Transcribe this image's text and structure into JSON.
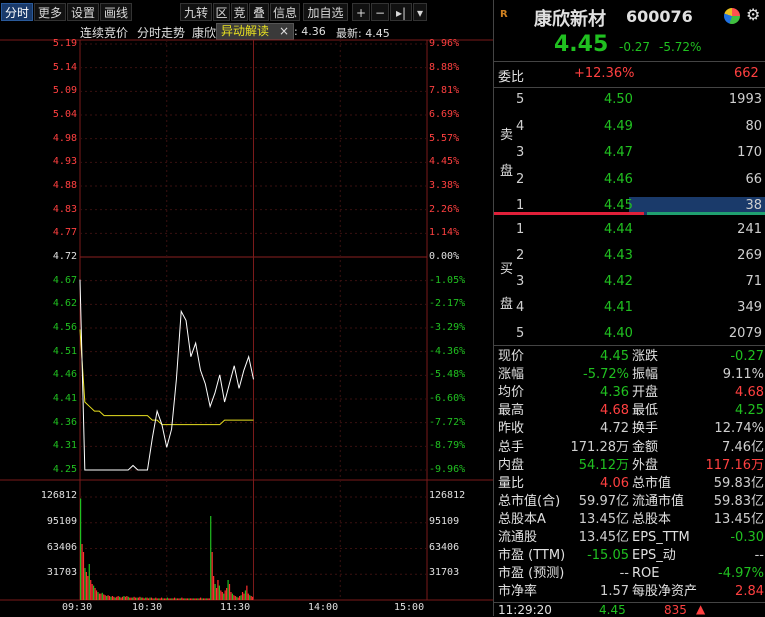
{
  "toolbar": {
    "tabs": [
      "分时",
      "更多",
      "设置",
      "画线"
    ],
    "tools": [
      "九转",
      "区",
      "竞",
      "叠",
      "信息",
      "加自选"
    ],
    "controls": [
      "+",
      "−",
      "▸|",
      "▾"
    ]
  },
  "chart_header": {
    "auction": "连续竞价",
    "trend": "分时走势",
    "name_partial": "康欣",
    "popup_label": "异动解读",
    "popup_close": "×",
    "avg_label_value": ": 4.36",
    "latest": "最新: 4.45"
  },
  "price_axis_left": [
    "5.19",
    "5.14",
    "5.09",
    "5.04",
    "4.98",
    "4.93",
    "4.88",
    "4.83",
    "4.77",
    "4.72",
    "4.67",
    "4.62",
    "4.56",
    "4.51",
    "4.46",
    "4.41",
    "4.36",
    "4.31",
    "4.25"
  ],
  "pct_axis_right": [
    "9.96%",
    "8.88%",
    "7.81%",
    "6.69%",
    "5.57%",
    "4.45%",
    "3.38%",
    "2.26%",
    "1.14%",
    "0.00%",
    "-1.05%",
    "-2.17%",
    "-3.29%",
    "-4.36%",
    "-5.48%",
    "-6.60%",
    "-7.72%",
    "-8.79%",
    "-9.96%"
  ],
  "volume_axis": [
    "126812",
    "95109",
    "63406",
    "31703"
  ],
  "time_axis": [
    "09:30",
    "10:30",
    "11:30",
    "14:00",
    "15:00"
  ],
  "colors": {
    "up": "#ff4040",
    "down": "#20c020",
    "price_line": "#ffffff",
    "avg_line": "#e8e020",
    "grid": "#3a1010"
  },
  "chart_data": {
    "type": "line",
    "ylim": [
      4.25,
      5.19
    ],
    "prev_close": 4.72,
    "series": [
      {
        "x": [
          0,
          1,
          2,
          3,
          4,
          5,
          6,
          7,
          8,
          9,
          10,
          11,
          12,
          13,
          14,
          15,
          16,
          17,
          18,
          19,
          20,
          21,
          22,
          23,
          24,
          25,
          26,
          27,
          28,
          29,
          30,
          31,
          32,
          33,
          34,
          35,
          36
        ],
        "values": [
          4.67,
          4.25,
          4.25,
          4.25,
          4.25,
          4.25,
          4.25,
          4.25,
          4.25,
          4.25,
          4.25,
          4.26,
          4.25,
          4.25,
          4.25,
          4.32,
          4.38,
          4.35,
          4.3,
          4.34,
          4.45,
          4.6,
          4.58,
          4.5,
          4.53,
          4.47,
          4.44,
          4.39,
          4.42,
          4.46,
          4.4,
          4.44,
          4.48,
          4.43,
          4.47,
          4.5,
          4.45
        ]
      },
      {
        "x": [
          0,
          1,
          2,
          3,
          4,
          5,
          6,
          7,
          8,
          9,
          10,
          11,
          12,
          13,
          14,
          15,
          16,
          17,
          18,
          19,
          20,
          21,
          22,
          23,
          24,
          25,
          26,
          27,
          28,
          29,
          30,
          31,
          32,
          33,
          34,
          35,
          36
        ],
        "values": [
          4.56,
          4.4,
          4.39,
          4.38,
          4.38,
          4.37,
          4.37,
          4.37,
          4.37,
          4.37,
          4.37,
          4.37,
          4.37,
          4.37,
          4.37,
          4.36,
          4.36,
          4.35,
          4.35,
          4.35,
          4.35,
          4.35,
          4.35,
          4.35,
          4.35,
          4.35,
          4.35,
          4.35,
          4.35,
          4.35,
          4.36,
          4.36,
          4.36,
          4.36,
          4.36,
          4.36,
          4.36
        ]
      }
    ],
    "volume": [
      126812,
      70000,
      60000,
      40000,
      35000,
      30000,
      45000,
      25000,
      20000,
      18000,
      15000,
      12000,
      10000,
      8000,
      8000,
      9000,
      7000,
      6000,
      5000,
      6000,
      5000,
      4000,
      5000,
      4000,
      3000,
      4000,
      5000,
      4000,
      3000,
      4000,
      5000,
      4000,
      5000,
      4000,
      3000,
      3000,
      3000,
      4000,
      3000,
      3000,
      3000,
      4000,
      3000,
      3000,
      2000,
      3000,
      3000,
      2000,
      3000,
      3000,
      2000,
      2000,
      3000,
      2000,
      2000,
      2000,
      3000,
      2000,
      2000,
      2000,
      3000,
      2000,
      2000,
      2000,
      2000,
      3000,
      2000,
      2000,
      2000,
      2000,
      3000,
      2000,
      2000,
      2000,
      2000,
      2000,
      2000,
      2000,
      2000,
      2000,
      2000,
      2000,
      2000,
      3000,
      2000,
      2000,
      2000,
      2000,
      2000,
      2000,
      105000,
      60000,
      30000,
      20000,
      15000,
      25000,
      18000,
      12000,
      10000,
      8000,
      12000,
      15000,
      25000,
      20000,
      10000,
      8000,
      6000,
      5000,
      4000,
      3000,
      5000,
      6000,
      10000,
      8000,
      12000,
      18000,
      8000,
      6000,
      5000,
      4000
    ]
  },
  "stock": {
    "name": "康欣新材",
    "code": "600076",
    "price": "4.45",
    "change": "-0.27",
    "pct": "-5.72%"
  },
  "weibi": {
    "label": "委比",
    "pct": "+12.36%",
    "value": "662"
  },
  "sell_label": [
    "卖",
    "盘"
  ],
  "buy_label": [
    "买",
    "盘"
  ],
  "sells": [
    {
      "n": "5",
      "price": "4.50",
      "vol": "1993"
    },
    {
      "n": "4",
      "price": "4.49",
      "vol": "80"
    },
    {
      "n": "3",
      "price": "4.47",
      "vol": "170"
    },
    {
      "n": "2",
      "price": "4.46",
      "vol": "66"
    },
    {
      "n": "1",
      "price": "4.45",
      "vol": "38"
    }
  ],
  "buys": [
    {
      "n": "1",
      "price": "4.44",
      "vol": "241"
    },
    {
      "n": "2",
      "price": "4.43",
      "vol": "269"
    },
    {
      "n": "3",
      "price": "4.42",
      "vol": "71"
    },
    {
      "n": "4",
      "price": "4.41",
      "vol": "349"
    },
    {
      "n": "5",
      "price": "4.40",
      "vol": "2079"
    }
  ],
  "stats": [
    [
      "现价",
      "4.45",
      "涨跌",
      "-0.27"
    ],
    [
      "涨幅",
      "-5.72%",
      "振幅",
      "9.11%"
    ],
    [
      "均价",
      "4.36",
      "开盘",
      "4.68"
    ],
    [
      "最高",
      "4.68",
      "最低",
      "4.25"
    ],
    [
      "昨收",
      "4.72",
      "换手",
      "12.74%"
    ],
    [
      "总手",
      "171.28万",
      "金额",
      "7.46亿"
    ],
    [
      "内盘",
      "54.12万",
      "外盘",
      "117.16万"
    ],
    [
      "量比",
      "4.06",
      "总市值",
      "59.83亿"
    ],
    [
      "总市值(合)",
      "59.97亿",
      "流通市值",
      "59.83亿"
    ],
    [
      "总股本A",
      "13.45亿",
      "总股本",
      "13.45亿"
    ],
    [
      "流通股",
      "13.45亿",
      "EPS_TTM",
      "-0.30"
    ],
    [
      "市盈 (TTM)",
      "-15.05",
      "EPS_动",
      "--"
    ],
    [
      "市盈 (预测)",
      "--",
      "ROE",
      "-4.97%"
    ],
    [
      "市净率",
      "1.57",
      "每股净资产",
      "2.84"
    ]
  ],
  "last_trade": {
    "time": "11:29:20",
    "price": "4.45",
    "vol": "835"
  }
}
